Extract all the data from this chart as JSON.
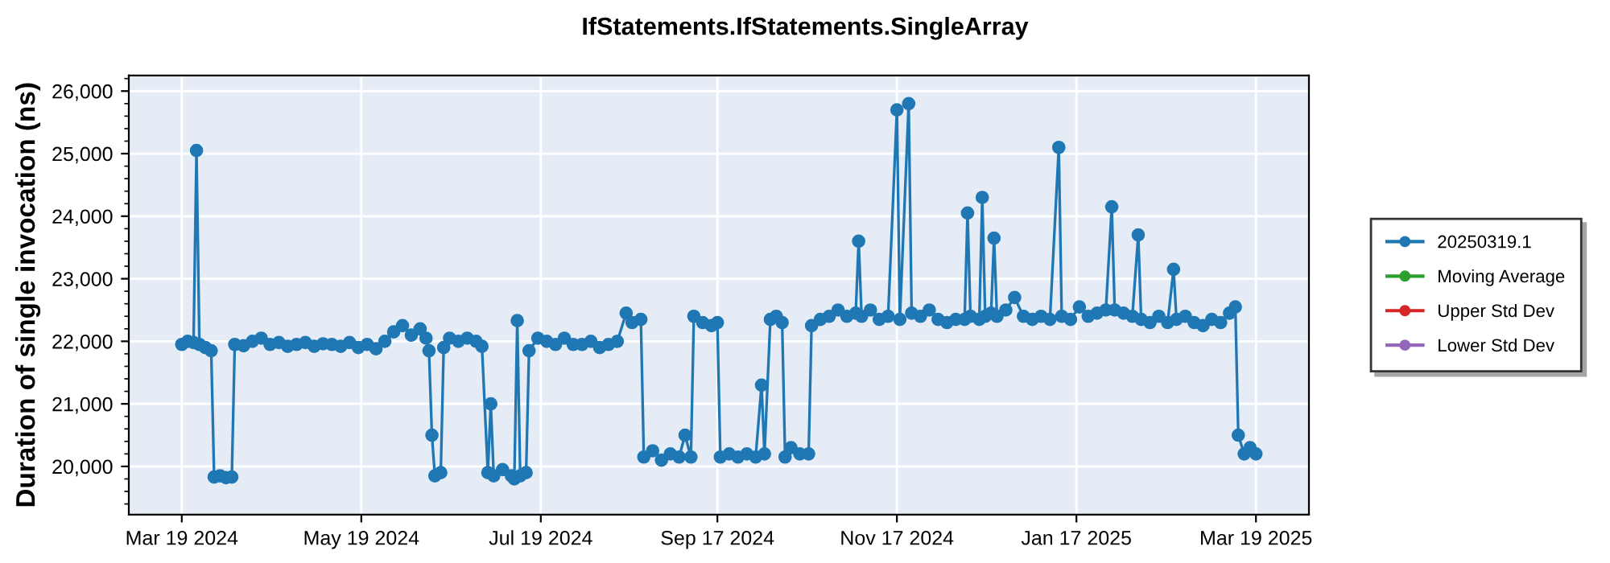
{
  "chart_data": {
    "type": "line",
    "title": "IfStatements.IfStatements.SingleArray",
    "ylabel": "Duration of single invocation (ns)",
    "x": [
      "2024-03-19",
      "2024-03-21",
      "2024-03-23",
      "2024-03-24",
      "2024-03-25",
      "2024-03-27",
      "2024-03-29",
      "2024-03-30",
      "2024-04-01",
      "2024-04-03",
      "2024-04-05",
      "2024-04-06",
      "2024-04-09",
      "2024-04-12",
      "2024-04-15",
      "2024-04-18",
      "2024-04-21",
      "2024-04-24",
      "2024-04-27",
      "2024-04-30",
      "2024-05-03",
      "2024-05-06",
      "2024-05-09",
      "2024-05-12",
      "2024-05-15",
      "2024-05-18",
      "2024-05-21",
      "2024-05-24",
      "2024-05-27",
      "2024-05-30",
      "2024-06-02",
      "2024-06-05",
      "2024-06-08",
      "2024-06-10",
      "2024-06-11",
      "2024-06-12",
      "2024-06-13",
      "2024-06-15",
      "2024-06-16",
      "2024-06-18",
      "2024-06-21",
      "2024-06-24",
      "2024-06-27",
      "2024-06-29",
      "2024-07-01",
      "2024-07-02",
      "2024-07-03",
      "2024-07-06",
      "2024-07-09",
      "2024-07-10",
      "2024-07-11",
      "2024-07-12",
      "2024-07-14",
      "2024-07-15",
      "2024-07-18",
      "2024-07-21",
      "2024-07-24",
      "2024-07-27",
      "2024-07-30",
      "2024-08-02",
      "2024-08-05",
      "2024-08-08",
      "2024-08-11",
      "2024-08-14",
      "2024-08-17",
      "2024-08-19",
      "2024-08-22",
      "2024-08-23",
      "2024-08-26",
      "2024-08-29",
      "2024-09-01",
      "2024-09-04",
      "2024-09-06",
      "2024-09-08",
      "2024-09-09",
      "2024-09-12",
      "2024-09-15",
      "2024-09-17",
      "2024-09-18",
      "2024-09-21",
      "2024-09-24",
      "2024-09-27",
      "2024-09-30",
      "2024-10-02",
      "2024-10-03",
      "2024-10-05",
      "2024-10-07",
      "2024-10-09",
      "2024-10-10",
      "2024-10-12",
      "2024-10-15",
      "2024-10-18",
      "2024-10-19",
      "2024-10-22",
      "2024-10-25",
      "2024-10-28",
      "2024-10-31",
      "2024-11-03",
      "2024-11-04",
      "2024-11-05",
      "2024-11-08",
      "2024-11-11",
      "2024-11-14",
      "2024-11-17",
      "2024-11-18",
      "2024-11-21",
      "2024-11-22",
      "2024-11-25",
      "2024-11-28",
      "2024-12-01",
      "2024-12-04",
      "2024-12-07",
      "2024-12-10",
      "2024-12-11",
      "2024-12-12",
      "2024-12-15",
      "2024-12-16",
      "2024-12-17",
      "2024-12-19",
      "2024-12-20",
      "2024-12-21",
      "2024-12-24",
      "2024-12-27",
      "2024-12-30",
      "2025-01-02",
      "2025-01-05",
      "2025-01-08",
      "2025-01-11",
      "2025-01-12",
      "2025-01-15",
      "2025-01-18",
      "2025-01-21",
      "2025-01-24",
      "2025-01-27",
      "2025-01-29",
      "2025-01-30",
      "2025-02-02",
      "2025-02-05",
      "2025-02-07",
      "2025-02-08",
      "2025-02-11",
      "2025-02-14",
      "2025-02-17",
      "2025-02-19",
      "2025-02-20",
      "2025-02-23",
      "2025-02-26",
      "2025-03-01",
      "2025-03-04",
      "2025-03-07",
      "2025-03-10",
      "2025-03-12",
      "2025-03-13",
      "2025-03-15",
      "2025-03-17",
      "2025-03-19"
    ],
    "series": [
      {
        "name": "20250319.1",
        "color": "#1f77b4",
        "values": [
          21950,
          22000,
          21980,
          25050,
          21950,
          21900,
          21850,
          19830,
          19850,
          19820,
          19830,
          21950,
          21930,
          22000,
          22050,
          21950,
          21980,
          21920,
          21950,
          21980,
          21920,
          21960,
          21950,
          21920,
          21980,
          21900,
          21950,
          21880,
          22000,
          22150,
          22250,
          22100,
          22200,
          22050,
          21850,
          20500,
          19850,
          19900,
          21900,
          22050,
          22000,
          22050,
          22000,
          21920,
          19900,
          21000,
          19850,
          19950,
          19850,
          19800,
          22330,
          19850,
          19900,
          21850,
          22050,
          22000,
          21950,
          22050,
          21950,
          21950,
          22000,
          21900,
          21950,
          22000,
          22450,
          22300,
          22350,
          20150,
          20250,
          20100,
          20200,
          20150,
          20500,
          20150,
          22400,
          22300,
          22250,
          22300,
          20150,
          20200,
          20150,
          20200,
          20150,
          21300,
          20200,
          22350,
          22400,
          22300,
          20150,
          20300,
          20200,
          20200,
          22250,
          22350,
          22400,
          22500,
          22400,
          22450,
          23600,
          22400,
          22500,
          22350,
          22400,
          25700,
          22350,
          25800,
          22450,
          22400,
          22500,
          22350,
          22300,
          22350,
          22350,
          24050,
          22400,
          22350,
          24300,
          22400,
          22450,
          23650,
          22400,
          22500,
          22700,
          22400,
          22350,
          22400,
          22350,
          25100,
          22400,
          22350,
          22550,
          22400,
          22450,
          22500,
          24150,
          22500,
          22450,
          22400,
          23700,
          22350,
          22300,
          22400,
          22300,
          23150,
          22350,
          22400,
          22300,
          22250,
          22350,
          22300,
          22450,
          22550,
          20500,
          20200,
          20300,
          20200
        ]
      },
      {
        "name": "Moving Average",
        "color": "#2ca02c",
        "values": [
          null,
          null,
          null,
          null,
          null,
          null,
          null,
          null,
          null,
          null,
          null,
          null,
          null,
          null,
          null,
          null,
          null,
          null,
          null,
          null,
          null,
          null,
          null,
          null,
          null,
          null,
          null,
          null,
          null,
          null,
          null,
          null,
          null,
          null,
          null,
          null,
          null,
          null,
          null,
          null,
          null,
          null,
          null,
          null,
          null,
          null,
          null,
          null,
          null,
          null,
          null,
          null,
          null,
          null,
          null,
          null,
          null,
          null,
          null,
          null,
          null,
          null,
          null,
          null,
          null,
          null,
          null,
          null,
          null,
          null,
          null,
          null,
          null,
          null,
          null,
          null,
          null,
          null,
          null,
          null,
          null,
          null,
          null,
          null,
          null,
          null,
          null,
          null,
          null,
          null,
          null,
          null,
          null,
          null,
          null,
          null,
          null,
          null,
          null,
          null,
          null,
          null,
          null,
          null,
          null,
          null,
          null,
          null,
          null,
          null,
          null,
          null,
          null,
          null,
          null,
          null,
          null,
          null,
          null,
          null,
          null,
          null,
          null,
          null,
          null,
          null,
          null,
          null,
          null,
          null,
          null,
          null,
          null,
          null,
          null,
          null,
          null,
          null,
          null,
          null,
          null,
          null,
          null,
          null,
          null,
          null,
          null,
          null,
          null,
          null,
          null,
          null,
          null,
          null,
          null,
          null
        ]
      },
      {
        "name": "Upper Std Dev",
        "color": "#d62728",
        "values": [
          null,
          null,
          null,
          null,
          null,
          null,
          null,
          null,
          null,
          null,
          null,
          null,
          null,
          null,
          null,
          null,
          null,
          null,
          null,
          null,
          null,
          null,
          null,
          null,
          null,
          null,
          null,
          null,
          null,
          null,
          null,
          null,
          null,
          null,
          null,
          null,
          null,
          null,
          null,
          null,
          null,
          null,
          null,
          null,
          null,
          null,
          null,
          null,
          null,
          null,
          null,
          null,
          null,
          null,
          null,
          null,
          null,
          null,
          null,
          null,
          null,
          null,
          null,
          null,
          null,
          null,
          null,
          null,
          null,
          null,
          null,
          null,
          null,
          null,
          null,
          null,
          null,
          null,
          null,
          null,
          null,
          null,
          null,
          null,
          null,
          null,
          null,
          null,
          null,
          null,
          null,
          null,
          null,
          null,
          null,
          null,
          null,
          null,
          null,
          null,
          null,
          null,
          null,
          null,
          null,
          null,
          null,
          null,
          null,
          null,
          null,
          null,
          null,
          null,
          null,
          null,
          null,
          null,
          null,
          null,
          null,
          null,
          null,
          null,
          null,
          null,
          null,
          null,
          null,
          null,
          null,
          null,
          null,
          null,
          null,
          null,
          null,
          null,
          null,
          null,
          null,
          null,
          null,
          null,
          null,
          null,
          null,
          null,
          null,
          null,
          null,
          null,
          null,
          null,
          null,
          null
        ]
      },
      {
        "name": "Lower Std Dev",
        "color": "#9467bd",
        "values": [
          null,
          null,
          null,
          null,
          null,
          null,
          null,
          null,
          null,
          null,
          null,
          null,
          null,
          null,
          null,
          null,
          null,
          null,
          null,
          null,
          null,
          null,
          null,
          null,
          null,
          null,
          null,
          null,
          null,
          null,
          null,
          null,
          null,
          null,
          null,
          null,
          null,
          null,
          null,
          null,
          null,
          null,
          null,
          null,
          null,
          null,
          null,
          null,
          null,
          null,
          null,
          null,
          null,
          null,
          null,
          null,
          null,
          null,
          null,
          null,
          null,
          null,
          null,
          null,
          null,
          null,
          null,
          null,
          null,
          null,
          null,
          null,
          null,
          null,
          null,
          null,
          null,
          null,
          null,
          null,
          null,
          null,
          null,
          null,
          null,
          null,
          null,
          null,
          null,
          null,
          null,
          null,
          null,
          null,
          null,
          null,
          null,
          null,
          null,
          null,
          null,
          null,
          null,
          null,
          null,
          null,
          null,
          null,
          null,
          null,
          null,
          null,
          null,
          null,
          null,
          null,
          null,
          null,
          null,
          null,
          null,
          null,
          null,
          null,
          null,
          null,
          null,
          null,
          null,
          null,
          null,
          null,
          null,
          null,
          null,
          null,
          null,
          null,
          null,
          null,
          null,
          null,
          null,
          null,
          null,
          null,
          null,
          null,
          null,
          null,
          null,
          null,
          null,
          null,
          null,
          null
        ]
      }
    ],
    "xlim": [
      "2024-03-01",
      "2025-04-06"
    ],
    "xticks": [
      {
        "value": "2024-03-19",
        "label": "Mar 19 2024"
      },
      {
        "value": "2024-05-19",
        "label": "May 19 2024"
      },
      {
        "value": "2024-07-19",
        "label": "Jul 19 2024"
      },
      {
        "value": "2024-09-17",
        "label": "Sep 17 2024"
      },
      {
        "value": "2024-11-17",
        "label": "Nov 17 2024"
      },
      {
        "value": "2025-01-17",
        "label": "Jan 17 2025"
      },
      {
        "value": "2025-03-19",
        "label": "Mar 19 2025"
      }
    ],
    "ylim": [
      19230,
      26250
    ],
    "yticks": [
      {
        "value": 20000,
        "label": "20,000"
      },
      {
        "value": 21000,
        "label": "21,000"
      },
      {
        "value": 22000,
        "label": "22,000"
      },
      {
        "value": 23000,
        "label": "23,000"
      },
      {
        "value": 24000,
        "label": "24,000"
      },
      {
        "value": 25000,
        "label": "25,000"
      },
      {
        "value": 26000,
        "label": "26,000"
      }
    ],
    "grid": true,
    "legend": "right",
    "marker": "circle",
    "line_style": "solid"
  }
}
